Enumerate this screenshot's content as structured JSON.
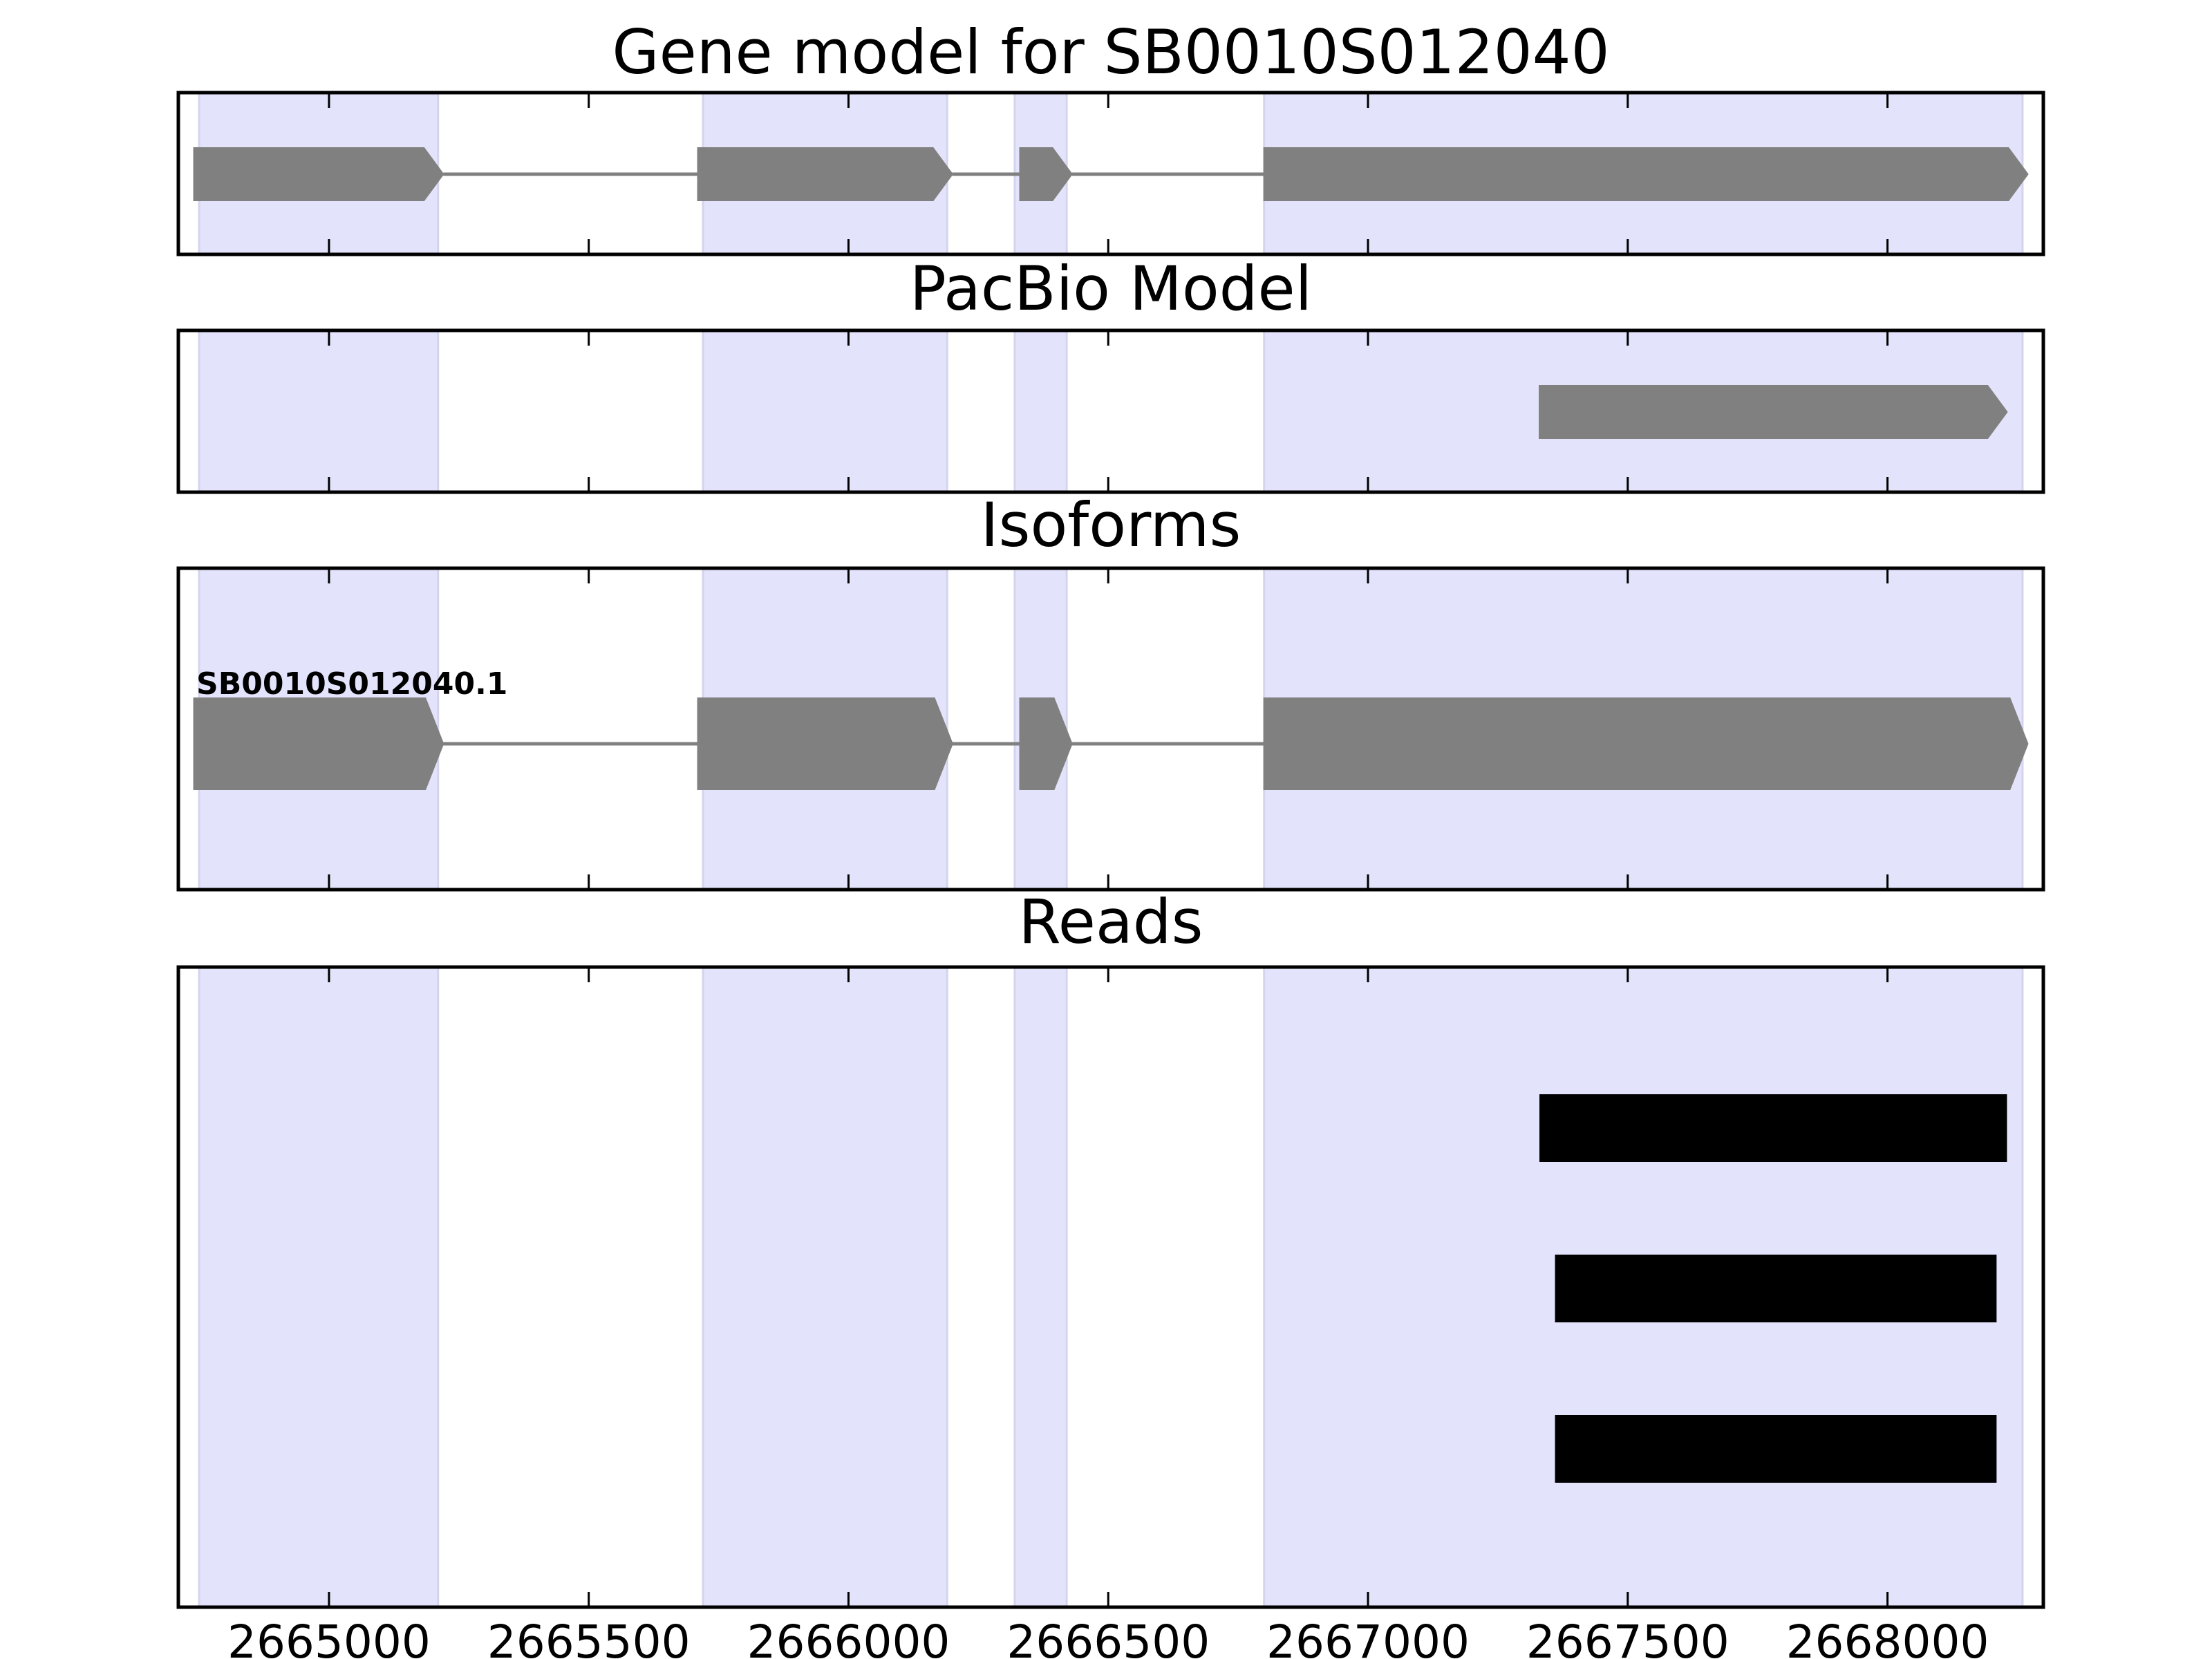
{
  "chart_data": {
    "type": "gene_track",
    "xlim": [
      2664710,
      2668300
    ],
    "xticks": [
      2665000,
      2665500,
      2666000,
      2666500,
      2667000,
      2667500,
      2668000
    ],
    "xticklabels": [
      "2665000",
      "2665500",
      "2666000",
      "2666500",
      "2667000",
      "2667500",
      "2668000"
    ],
    "exon_regions": [
      [
        2664750,
        2665210
      ],
      [
        2665720,
        2666190
      ],
      [
        2666320,
        2666420
      ],
      [
        2666800,
        2668260
      ]
    ],
    "highlight_color": "#e3e3fb",
    "feature_color": "#808080",
    "read_color": "#000000",
    "panels": [
      {
        "title": "Gene model for SB0010S012040",
        "kind": "gene",
        "exons": [
          [
            2664740,
            2665220
          ],
          [
            2665710,
            2666200
          ],
          [
            2666330,
            2666430
          ],
          [
            2666800,
            2668270
          ]
        ],
        "strand": "+"
      },
      {
        "title": "PacBio Model",
        "kind": "gene",
        "exons": [
          [
            2667330,
            2668230
          ]
        ],
        "strand": "+"
      },
      {
        "title": "Isoforms",
        "kind": "gene",
        "isoform_label": "SB0010S012040.1",
        "exons": [
          [
            2664740,
            2665220
          ],
          [
            2665710,
            2666200
          ],
          [
            2666330,
            2666430
          ],
          [
            2666800,
            2668270
          ]
        ],
        "strand": "+"
      },
      {
        "title": "Reads",
        "kind": "reads",
        "reads": [
          [
            2667330,
            2668230
          ],
          [
            2667360,
            2668210
          ],
          [
            2667360,
            2668210
          ]
        ]
      }
    ]
  }
}
